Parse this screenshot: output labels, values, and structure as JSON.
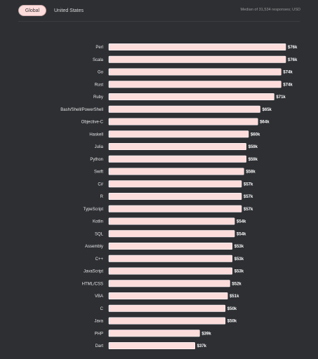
{
  "tabs": {
    "global_label": "Global",
    "us_label": "United States",
    "active": "Global"
  },
  "caption": "Median of 31,534 responses; USD",
  "colors": {
    "background": "#2d2f33",
    "bar": "#fddcdc",
    "text": "#e6e6e6"
  },
  "chart_data": {
    "type": "bar",
    "orientation": "horizontal",
    "categories": [
      "Perl",
      "Scala",
      "Go",
      "Rust",
      "Ruby",
      "Bash/Shell/PowerShell",
      "Objective-C",
      "Haskell",
      "Julia",
      "Python",
      "Swift",
      "C#",
      "R",
      "TypeScript",
      "Kotlin",
      "SQL",
      "Assembly",
      "C++",
      "JavaScript",
      "HTML/CSS",
      "VBA",
      "C",
      "Java",
      "PHP",
      "Dart"
    ],
    "values": [
      76,
      76,
      74,
      74,
      71,
      65,
      64,
      60,
      59,
      59,
      58,
      57,
      57,
      57,
      54,
      54,
      53,
      53,
      53,
      52,
      51,
      50,
      50,
      39,
      37
    ],
    "value_labels": [
      "$76k",
      "$76k",
      "$74k",
      "$74k",
      "$71k",
      "$65k",
      "$64k",
      "$60k",
      "$59k",
      "$59k",
      "$58k",
      "$57k",
      "$57k",
      "$57k",
      "$54k",
      "$54k",
      "$53k",
      "$53k",
      "$53k",
      "$52k",
      "$51k",
      "$50k",
      "$50k",
      "$39k",
      "$37k"
    ],
    "title": "",
    "xlabel": "",
    "ylabel": "",
    "xlim": [
      0,
      76
    ],
    "grid": false,
    "legend": false
  }
}
